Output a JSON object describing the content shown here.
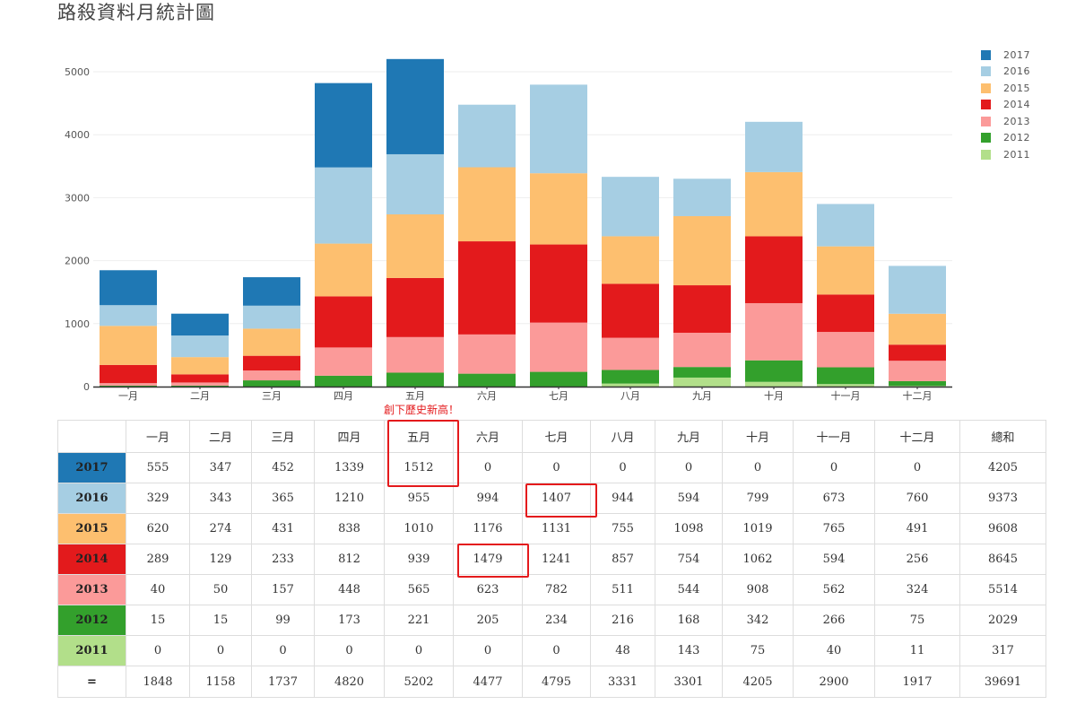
{
  "title": "路殺資料月統計圖",
  "annotation": "創下歷史新高！",
  "chart_data": {
    "type": "bar",
    "stacked": true,
    "categories": [
      "一月",
      "二月",
      "三月",
      "四月",
      "五月",
      "六月",
      "七月",
      "八月",
      "九月",
      "十月",
      "十一月",
      "十二月"
    ],
    "series": [
      {
        "name": "2011",
        "color": "#b2df8a",
        "values": [
          0,
          0,
          0,
          0,
          0,
          0,
          0,
          48,
          143,
          75,
          40,
          11
        ]
      },
      {
        "name": "2012",
        "color": "#33a02c",
        "values": [
          15,
          15,
          99,
          173,
          221,
          205,
          234,
          216,
          168,
          342,
          266,
          75
        ]
      },
      {
        "name": "2013",
        "color": "#fb9a99",
        "values": [
          40,
          50,
          157,
          448,
          565,
          623,
          782,
          511,
          544,
          908,
          562,
          324
        ]
      },
      {
        "name": "2014",
        "color": "#e31a1c",
        "values": [
          289,
          129,
          233,
          812,
          939,
          1479,
          1241,
          857,
          754,
          1062,
          594,
          256
        ]
      },
      {
        "name": "2015",
        "color": "#fdbf6f",
        "values": [
          620,
          274,
          431,
          838,
          1010,
          1176,
          1131,
          755,
          1098,
          1019,
          765,
          491
        ]
      },
      {
        "name": "2016",
        "color": "#a6cee3",
        "values": [
          329,
          343,
          365,
          1210,
          955,
          994,
          1407,
          944,
          594,
          799,
          673,
          760
        ]
      },
      {
        "name": "2017",
        "color": "#1f78b4",
        "values": [
          555,
          347,
          452,
          1339,
          1512,
          0,
          0,
          0,
          0,
          0,
          0,
          0
        ]
      }
    ],
    "yticks": [
      0,
      1000,
      2000,
      3000,
      4000,
      5000
    ],
    "ylim": [
      0,
      5500
    ],
    "grid": true,
    "legend_position": "right"
  },
  "legend": [
    {
      "label": "2017",
      "color": "#1f78b4"
    },
    {
      "label": "2016",
      "color": "#a6cee3"
    },
    {
      "label": "2015",
      "color": "#fdbf6f"
    },
    {
      "label": "2014",
      "color": "#e31a1c"
    },
    {
      "label": "2013",
      "color": "#fb9a99"
    },
    {
      "label": "2012",
      "color": "#33a02c"
    },
    {
      "label": "2011",
      "color": "#b2df8a"
    }
  ],
  "table": {
    "headers": [
      "",
      "一月",
      "二月",
      "三月",
      "四月",
      "五月",
      "六月",
      "七月",
      "八月",
      "九月",
      "十月",
      "十一月",
      "十二月",
      "總和"
    ],
    "rows": [
      {
        "label": "2017",
        "color": "#1f78b4",
        "cells": [
          "555",
          "347",
          "452",
          "1339",
          "1512",
          "0",
          "0",
          "0",
          "0",
          "0",
          "0",
          "0",
          "4205"
        ]
      },
      {
        "label": "2016",
        "color": "#a6cee3",
        "cells": [
          "329",
          "343",
          "365",
          "1210",
          "955",
          "994",
          "1407",
          "944",
          "594",
          "799",
          "673",
          "760",
          "9373"
        ]
      },
      {
        "label": "2015",
        "color": "#fdbf6f",
        "cells": [
          "620",
          "274",
          "431",
          "838",
          "1010",
          "1176",
          "1131",
          "755",
          "1098",
          "1019",
          "765",
          "491",
          "9608"
        ]
      },
      {
        "label": "2014",
        "color": "#e31a1c",
        "cells": [
          "289",
          "129",
          "233",
          "812",
          "939",
          "1479",
          "1241",
          "857",
          "754",
          "1062",
          "594",
          "256",
          "8645"
        ]
      },
      {
        "label": "2013",
        "color": "#fb9a99",
        "cells": [
          "40",
          "50",
          "157",
          "448",
          "565",
          "623",
          "782",
          "511",
          "544",
          "908",
          "562",
          "324",
          "5514"
        ]
      },
      {
        "label": "2012",
        "color": "#33a02c",
        "cells": [
          "15",
          "15",
          "99",
          "173",
          "221",
          "205",
          "234",
          "216",
          "168",
          "342",
          "266",
          "75",
          "2029"
        ]
      },
      {
        "label": "2011",
        "color": "#b2df8a",
        "cells": [
          "0",
          "0",
          "0",
          "0",
          "0",
          "0",
          "0",
          "48",
          "143",
          "75",
          "40",
          "11",
          "317"
        ]
      }
    ],
    "total_row": {
      "label": "=",
      "cells": [
        "1848",
        "1158",
        "1737",
        "4820",
        "5202",
        "4477",
        "4795",
        "3331",
        "3301",
        "4205",
        "2900",
        "1917",
        "39691"
      ]
    }
  }
}
